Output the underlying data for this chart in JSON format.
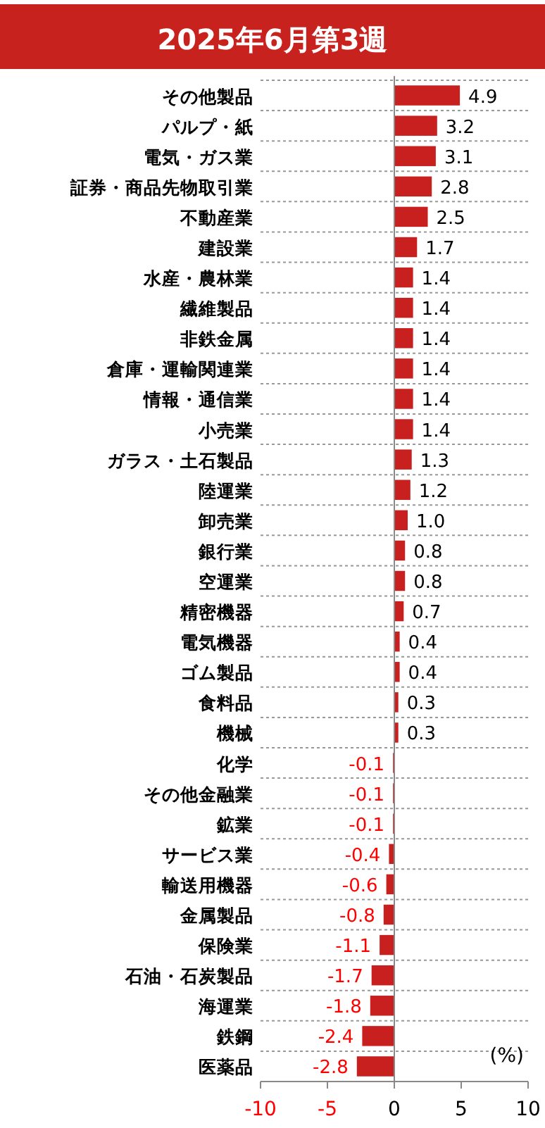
{
  "chart_data": {
    "type": "bar",
    "orientation": "horizontal",
    "title": "2025年6月第3週",
    "categories": [
      "その他製品",
      "パルプ・紙",
      "電気・ガス業",
      "証券・商品先物取引業",
      "不動産業",
      "建設業",
      "水産・農林業",
      "繊維製品",
      "非鉄金属",
      "倉庫・運輸関連業",
      "情報・通信業",
      "小売業",
      "ガラス・土石製品",
      "陸運業",
      "卸売業",
      "銀行業",
      "空運業",
      "精密機器",
      "電気機器",
      "ゴム製品",
      "食料品",
      "機械",
      "化学",
      "その他金融業",
      "鉱業",
      "サービス業",
      "輸送用機器",
      "金属製品",
      "保険業",
      "石油・石炭製品",
      "海運業",
      "鉄鋼",
      "医薬品"
    ],
    "values": [
      4.9,
      3.2,
      3.1,
      2.8,
      2.5,
      1.7,
      1.4,
      1.4,
      1.4,
      1.4,
      1.4,
      1.4,
      1.3,
      1.2,
      1.0,
      0.8,
      0.8,
      0.7,
      0.4,
      0.4,
      0.3,
      0.3,
      -0.1,
      -0.1,
      -0.1,
      -0.4,
      -0.6,
      -0.8,
      -1.1,
      -1.7,
      -1.8,
      -2.4,
      -2.8
    ],
    "value_labels": [
      "4.9",
      "3.2",
      "3.1",
      "2.8",
      "2.5",
      "1.7",
      "1.4",
      "1.4",
      "1.4",
      "1.4",
      "1.4",
      "1.4",
      "1.3",
      "1.2",
      "1.0",
      "0.8",
      "0.8",
      "0.7",
      "0.4",
      "0.4",
      "0.3",
      "0.3",
      "-0.1",
      "-0.1",
      "-0.1",
      "-0.4",
      "-0.6",
      "-0.8",
      "-1.1",
      "-1.7",
      "-1.8",
      "-2.4",
      "-2.8"
    ],
    "color": "#c8201f",
    "xlim": [
      -10,
      10
    ],
    "xticks": [
      -10,
      -5,
      0,
      5,
      10
    ],
    "grid": "y",
    "annotations": [
      "(%)"
    ]
  }
}
